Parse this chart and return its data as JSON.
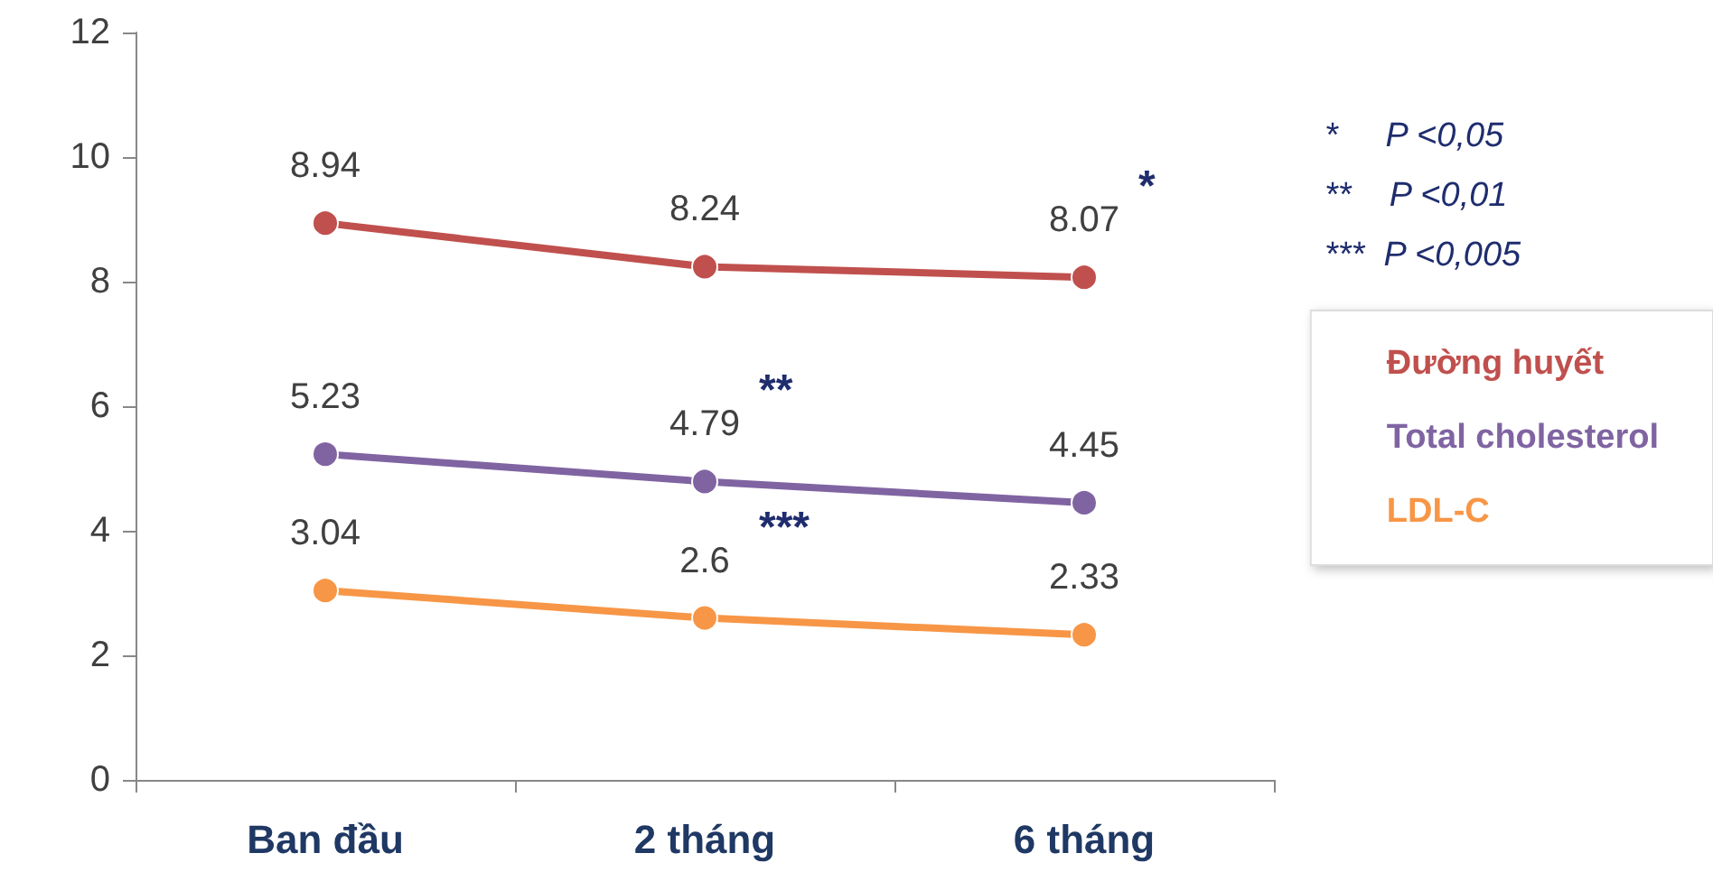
{
  "chart_data": {
    "type": "line",
    "categories": [
      "Ban đầu",
      "2 tháng",
      "6 tháng"
    ],
    "series": [
      {
        "name": "Đường huyết",
        "color": "#c0504d",
        "values": [
          8.94,
          8.24,
          8.07
        ]
      },
      {
        "name": "Total cholesterol",
        "color": "#8064a2",
        "values": [
          5.23,
          4.79,
          4.45
        ]
      },
      {
        "name": "LDL-C",
        "color": "#f79646",
        "values": [
          3.04,
          2.6,
          2.33
        ]
      }
    ],
    "ylim": [
      0,
      12
    ],
    "yticks": [
      0,
      2,
      4,
      6,
      8,
      10,
      12
    ],
    "grid": false,
    "legend": "right",
    "marker": "circle",
    "line_style": "solid",
    "data_labels": true,
    "annotations": [
      {
        "text": "*",
        "x": "6 tháng",
        "y": 8.07
      },
      {
        "text": "**",
        "x": "2 tháng",
        "y": 4.79
      },
      {
        "text": "***",
        "x": "2 tháng",
        "y": 2.6
      },
      "*     P <0,05",
      "**    P <0,01",
      "***  P <0,005"
    ]
  }
}
